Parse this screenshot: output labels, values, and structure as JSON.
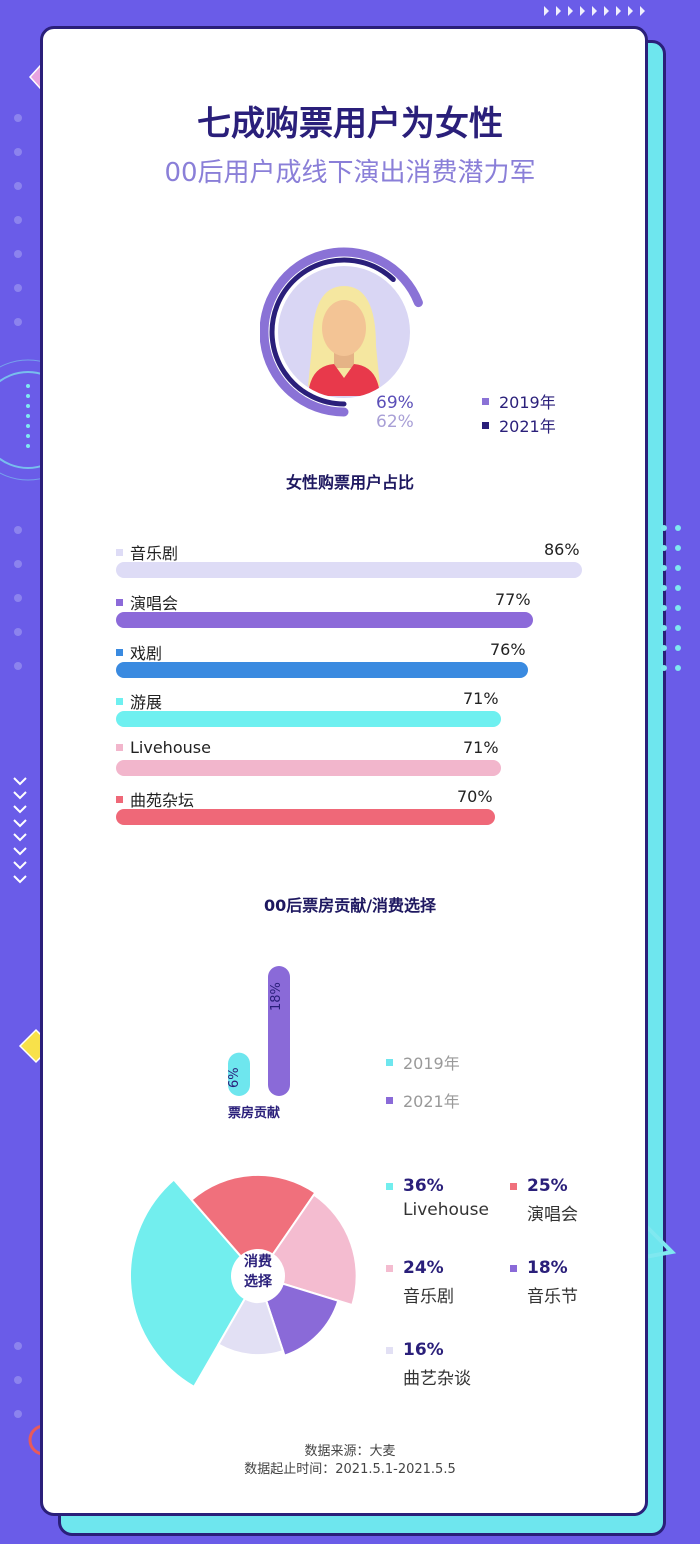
{
  "title": "七成购票用户为女性",
  "subtitle": "00后用户成线下演出消费潜力军",
  "female_section": {
    "label": "女性购票用户占比",
    "pct_2019": "69%",
    "pct_2021": "62%",
    "legend": [
      {
        "label": "2019年",
        "color": "#8a72d6"
      },
      {
        "label": "2021年",
        "color": "#2a1f7a"
      }
    ]
  },
  "bars": [
    {
      "label": "音乐剧",
      "pct": "86%",
      "value": 86,
      "color": "#dedcf6"
    },
    {
      "label": "演唱会",
      "pct": "77%",
      "value": 77,
      "color": "#8c6ad9"
    },
    {
      "label": "戏剧",
      "pct": "76%",
      "value": 76,
      "color": "#3a8ae0"
    },
    {
      "label": "游展",
      "pct": "71%",
      "value": 71,
      "color": "#6ef0f0"
    },
    {
      "label": "Livehouse",
      "pct": "71%",
      "value": 71,
      "color": "#f2b6cc"
    },
    {
      "label": "曲苑杂坛",
      "pct": "70%",
      "value": 70,
      "color": "#ef6878"
    }
  ],
  "zero_section": {
    "label": "00后票房贡献/消费选择",
    "box_office_label": "票房贡献",
    "v2019": "6%",
    "v2021": "18%",
    "legend": [
      {
        "label": "2019年",
        "color": "#6ee6ee"
      },
      {
        "label": "2021年",
        "color": "#8a6ad8"
      }
    ]
  },
  "donut": {
    "center_line1": "消费",
    "center_line2": "选择",
    "items": [
      {
        "pct": "36%",
        "name": "Livehouse",
        "value": 36,
        "color": "#72eeee"
      },
      {
        "pct": "25%",
        "name": "演唱会",
        "value": 25,
        "color": "#f0707c"
      },
      {
        "pct": "24%",
        "name": "音乐剧",
        "value": 24,
        "color": "#f4bcd0"
      },
      {
        "pct": "18%",
        "name": "音乐节",
        "value": 18,
        "color": "#8a6ad8"
      },
      {
        "pct": "16%",
        "name": "曲艺杂谈",
        "value": 16,
        "color": "#e2e0f4"
      }
    ]
  },
  "footer": {
    "source": "数据来源：大麦",
    "period": "数据起止时间：2021.5.1-2021.5.5"
  },
  "chart_data": [
    {
      "type": "pie",
      "title": "女性购票用户占比",
      "categories": [
        "2019年",
        "2021年"
      ],
      "values": [
        69,
        62
      ]
    },
    {
      "type": "bar",
      "categories": [
        "音乐剧",
        "演唱会",
        "戏剧",
        "游展",
        "Livehouse",
        "曲苑杂坛"
      ],
      "values": [
        86,
        77,
        76,
        71,
        71,
        70
      ]
    },
    {
      "type": "bar",
      "title": "00后票房贡献/消费选择",
      "categories": [
        "票房贡献"
      ],
      "series": [
        {
          "name": "2019年",
          "values": [
            6
          ]
        },
        {
          "name": "2021年",
          "values": [
            18
          ]
        }
      ]
    },
    {
      "type": "pie",
      "categories": [
        "Livehouse",
        "演唱会",
        "音乐剧",
        "音乐节",
        "曲艺杂谈"
      ],
      "values": [
        36,
        25,
        24,
        18,
        16
      ]
    }
  ]
}
